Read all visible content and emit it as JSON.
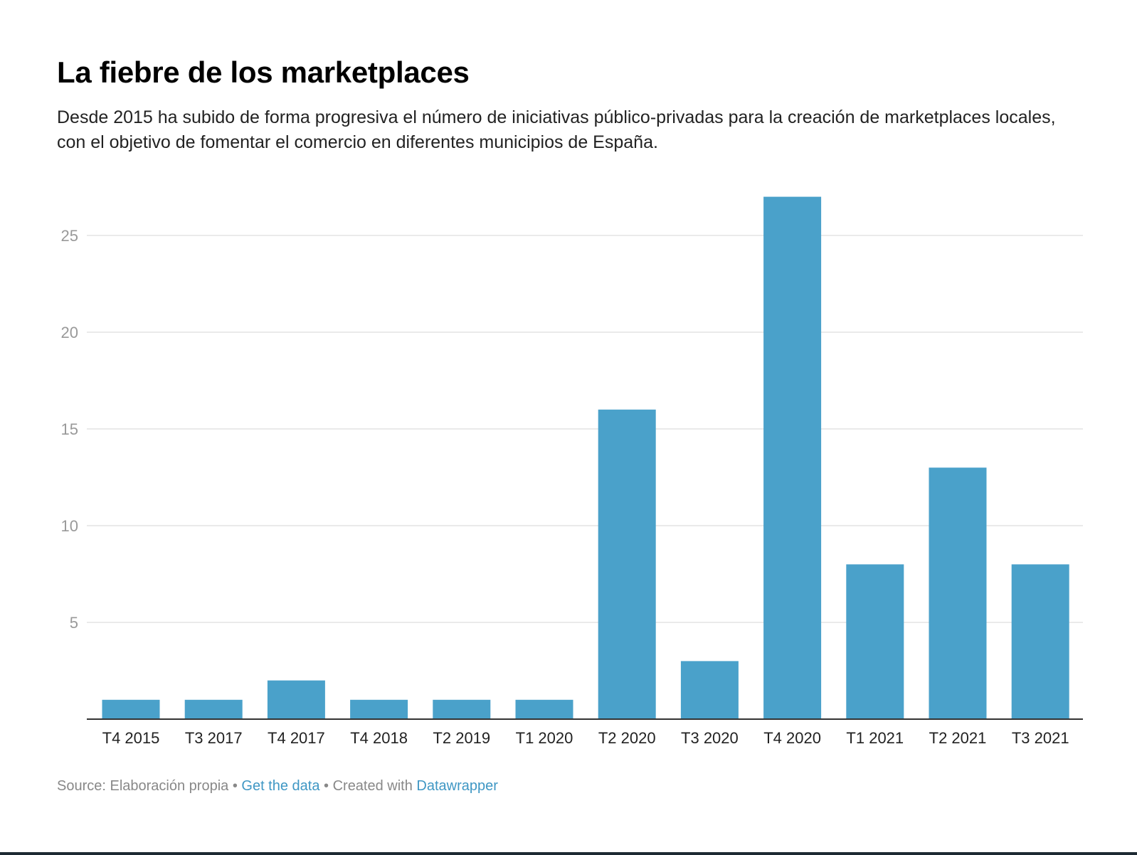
{
  "header": {
    "title": "La fiebre de los marketplaces",
    "subtitle": "Desde 2015 ha subido de forma progresiva el número de iniciativas público-privadas para la creación de marketplaces locales, con el objetivo de fomentar el comercio en diferentes municipios de España."
  },
  "chart_data": {
    "type": "bar",
    "categories": [
      "T4 2015",
      "T3 2017",
      "T4 2017",
      "T4 2018",
      "T2 2019",
      "T1 2020",
      "T2 2020",
      "T3 2020",
      "T4 2020",
      "T1 2021",
      "T2 2021",
      "T3 2021"
    ],
    "values": [
      1,
      1,
      2,
      1,
      1,
      1,
      16,
      3,
      27,
      8,
      13,
      8
    ],
    "yticks": [
      5,
      10,
      15,
      20,
      25
    ],
    "ylim": [
      0,
      27
    ],
    "grid": true,
    "bar_color": "#4aa1ca"
  },
  "footer": {
    "source_prefix": "Source: ",
    "source": "Elaboración propia",
    "separator_1": " • ",
    "get_data_label": "Get the data",
    "separator_2": " • Created with ",
    "datawrapper_label": "Datawrapper"
  }
}
